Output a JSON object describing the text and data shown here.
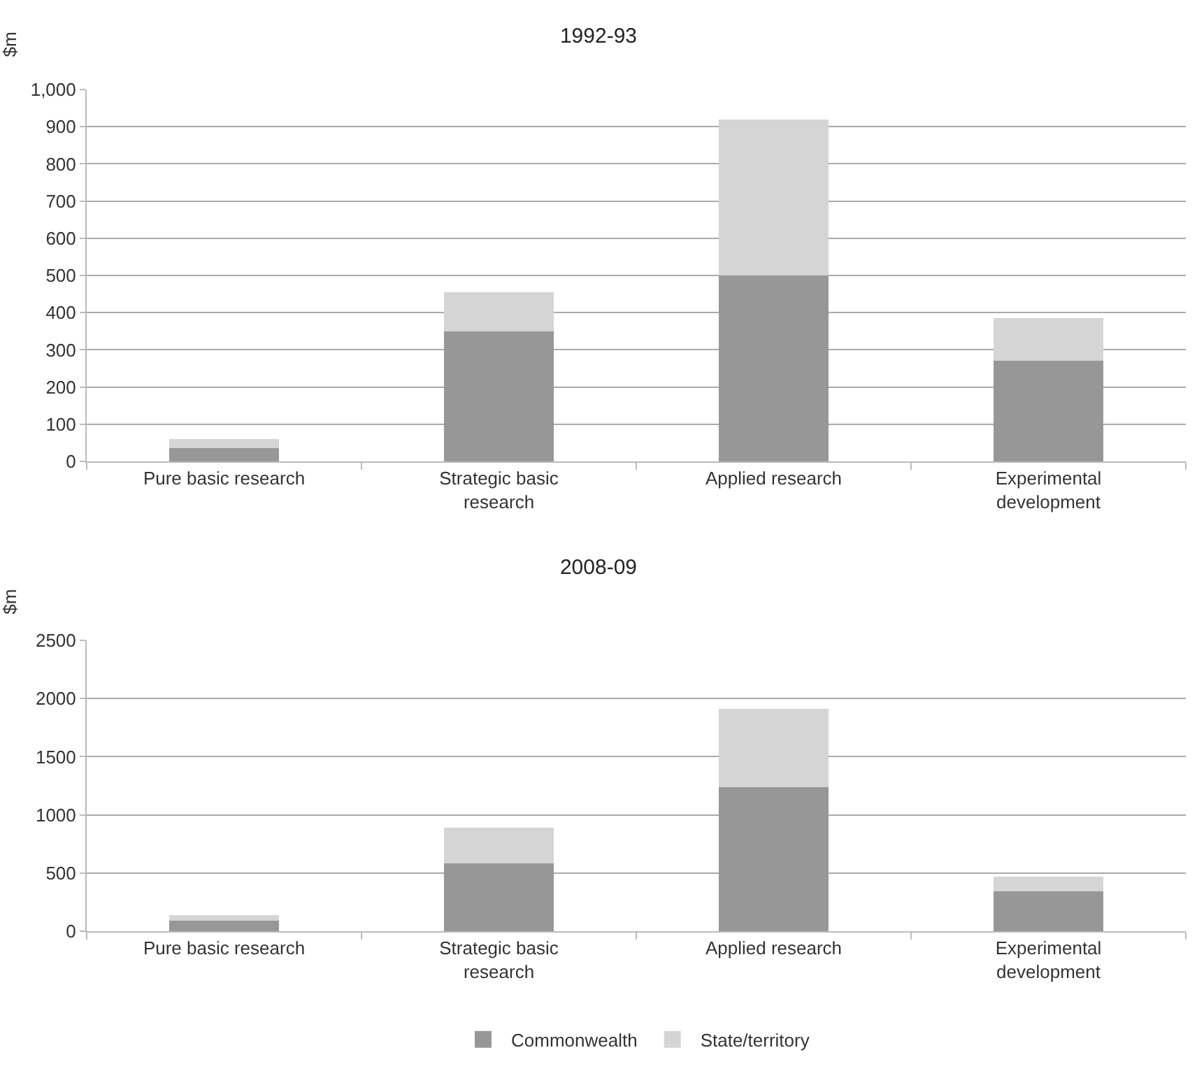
{
  "chart_data": [
    {
      "type": "bar",
      "title": "1992-93",
      "ylabel": "$m",
      "categories": [
        "Pure basic research",
        "Strategic basic research",
        "Applied research",
        "Experimental development"
      ],
      "stacked": true,
      "ylim": [
        0,
        1000
      ],
      "yticks": [
        0,
        100,
        200,
        300,
        400,
        500,
        600,
        700,
        800,
        900,
        {
          "value": 1000,
          "label": "1,000"
        }
      ],
      "grid": "y",
      "legend": false,
      "series": [
        {
          "color": "#979797",
          "values": [
            35,
            350,
            500,
            270
          ]
        },
        {
          "color": "#d5d5d5",
          "values": [
            25,
            105,
            420,
            115
          ]
        }
      ]
    },
    {
      "type": "bar",
      "title": "2008-09",
      "ylabel": "$m",
      "categories": [
        "Pure basic research",
        "Strategic basic research",
        "Applied research",
        "Experimental development"
      ],
      "stacked": true,
      "ylim": [
        0,
        2500
      ],
      "yticks": [
        0,
        500,
        1000,
        1500,
        2000,
        2500
      ],
      "grid": "y",
      "legend": "bottom",
      "series": [
        {
          "name": "Commonwealth",
          "color": "#979797",
          "values": [
            90,
            580,
            1240,
            340
          ]
        },
        {
          "name": "State/territory",
          "color": "#d5d5d5",
          "values": [
            50,
            310,
            670,
            130
          ]
        }
      ]
    }
  ]
}
